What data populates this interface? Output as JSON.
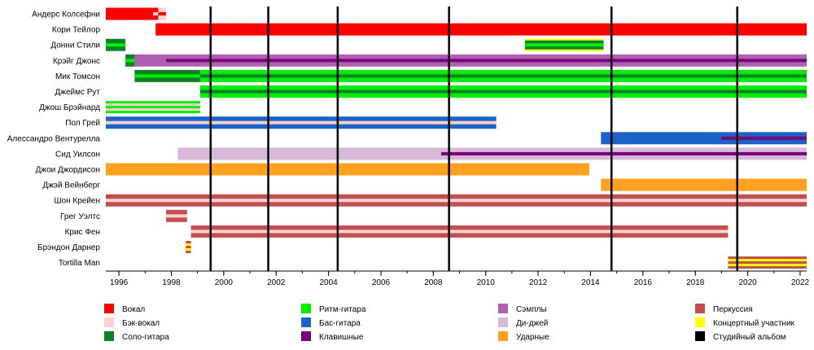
{
  "chart_data": {
    "type": "timeline",
    "x_range": [
      1995.5,
      2022.25
    ],
    "tick_labels": [
      "1996",
      "1998",
      "2000",
      "2002",
      "2004",
      "2006",
      "2008",
      "2010",
      "2012",
      "2014",
      "2016",
      "2018",
      "2020",
      "2022"
    ],
    "tick_values": [
      1996,
      1998,
      2000,
      2002,
      2004,
      2006,
      2008,
      2010,
      2012,
      2014,
      2016,
      2018,
      2020,
      2022
    ],
    "album_years": [
      1999.5,
      2001.7,
      2004.35,
      2008.6,
      2014.8,
      2019.6
    ],
    "roles": {
      "vocal": {
        "label": "Вокал",
        "color": "#ff0000"
      },
      "backing": {
        "label": "Бэк-вокал",
        "color": "#ffd0d0"
      },
      "lead": {
        "label": "Соло-гитара",
        "color": "#0f7f2a"
      },
      "rhythm": {
        "label": "Ритм-гитара",
        "color": "#00ee00"
      },
      "bass": {
        "label": "Бас-гитара",
        "color": "#1b63c6"
      },
      "keys": {
        "label": "Клавишные",
        "color": "#78007c"
      },
      "samples": {
        "label": "Сэмплы",
        "color": "#b060b0"
      },
      "dj": {
        "label": "Ди-джей",
        "color": "#d8b8d8"
      },
      "drums": {
        "label": "Ударные",
        "color": "#ffa020"
      },
      "perc": {
        "label": "Перкуссия",
        "color": "#c05050"
      },
      "touring": {
        "label": "Концертный участник",
        "color": "#ffff00"
      },
      "album": {
        "label": "Студийный альбом",
        "color": "#000000"
      }
    },
    "legend_columns": [
      [
        "vocal",
        "backing",
        "lead"
      ],
      [
        "rhythm",
        "bass",
        "keys"
      ],
      [
        "samples",
        "dj",
        "drums"
      ],
      [
        "perc",
        "touring",
        "album"
      ]
    ],
    "members": [
      {
        "name": "Андерс Колсефни",
        "bars": [
          {
            "role": "vocal",
            "start": 1995.5,
            "end": 1997.5,
            "pattern": "solid"
          },
          {
            "role": "vocal",
            "start": 1997.3,
            "end": 1997.5,
            "pattern": "stripe",
            "stripe": "backing"
          },
          {
            "role": "backing",
            "start": 1997.5,
            "end": 1997.8,
            "pattern": "stripe",
            "stripe": "vocal"
          }
        ]
      },
      {
        "name": "Кори Тейлор",
        "bars": [
          {
            "role": "vocal",
            "start": 1997.4,
            "end": 2022.25,
            "pattern": "solid"
          }
        ]
      },
      {
        "name": "Донни Стили",
        "bars": [
          {
            "role": "lead",
            "start": 1995.5,
            "end": 1996.25,
            "pattern": "stripe",
            "stripe": "rhythm"
          },
          {
            "role": "touring",
            "start": 2011.5,
            "end": 2014.5,
            "pattern": "solid"
          },
          {
            "role": "lead",
            "start": 2011.5,
            "end": 2014.5,
            "pattern": "stripe",
            "stripe": "rhythm",
            "thin": true
          }
        ]
      },
      {
        "name": "Крэйг Джонс",
        "bars": [
          {
            "role": "lead",
            "start": 1996.25,
            "end": 1996.6,
            "pattern": "stripe",
            "stripe": "rhythm"
          },
          {
            "role": "samples",
            "start": 1996.6,
            "end": 2022.25,
            "pattern": "solid"
          },
          {
            "role": "keys",
            "start": 1997.8,
            "end": 2022.25,
            "pattern": "thin"
          }
        ]
      },
      {
        "name": "Мик Томсон",
        "bars": [
          {
            "role": "lead",
            "start": 1996.6,
            "end": 1999.1,
            "pattern": "stripe",
            "stripe": "rhythm"
          },
          {
            "role": "rhythm",
            "start": 1999.1,
            "end": 2022.25,
            "pattern": "stripe",
            "stripe": "lead"
          }
        ]
      },
      {
        "name": "Джеймс Рут",
        "bars": [
          {
            "role": "rhythm",
            "start": 1999.1,
            "end": 2022.25,
            "pattern": "stripe",
            "stripe": "lead"
          }
        ]
      },
      {
        "name": "Джош Брэйнард",
        "bars": [
          {
            "role": "rhythm",
            "start": 1995.5,
            "end": 1999.1,
            "pattern": "stripe3",
            "stripe": "backing"
          }
        ]
      },
      {
        "name": "Пол Грей",
        "bars": [
          {
            "role": "bass",
            "start": 1995.5,
            "end": 2010.4,
            "pattern": "stripe",
            "stripe": "backing"
          }
        ]
      },
      {
        "name": "Алессандро Вентурелла",
        "bars": [
          {
            "role": "bass",
            "start": 2014.4,
            "end": 2022.25,
            "pattern": "solid"
          },
          {
            "role": "keys",
            "start": 2019.0,
            "end": 2022.25,
            "pattern": "thin"
          }
        ]
      },
      {
        "name": "Сид Уилсон",
        "bars": [
          {
            "role": "dj",
            "start": 1998.25,
            "end": 2022.25,
            "pattern": "solid"
          },
          {
            "role": "keys",
            "start": 2008.3,
            "end": 2022.25,
            "pattern": "thin"
          }
        ]
      },
      {
        "name": "Джои Джордисон",
        "bars": [
          {
            "role": "drums",
            "start": 1995.5,
            "end": 2013.95,
            "pattern": "solid"
          }
        ]
      },
      {
        "name": "Джэй Вейнберг",
        "bars": [
          {
            "role": "drums",
            "start": 2014.4,
            "end": 2022.25,
            "pattern": "solid"
          }
        ]
      },
      {
        "name": "Шон Крейен",
        "bars": [
          {
            "role": "perc",
            "start": 1995.5,
            "end": 2022.25,
            "pattern": "stripe",
            "stripe": "backing"
          }
        ]
      },
      {
        "name": "Грег Уэлтс",
        "bars": [
          {
            "role": "perc",
            "start": 1997.8,
            "end": 1998.6,
            "pattern": "stripe",
            "stripe": "backing"
          }
        ]
      },
      {
        "name": "Крис Фен",
        "bars": [
          {
            "role": "perc",
            "start": 1998.75,
            "end": 2019.25,
            "pattern": "stripe",
            "stripe": "backing"
          }
        ]
      },
      {
        "name": "Брэндон Дарнер",
        "bars": [
          {
            "role": "perc",
            "start": 1998.55,
            "end": 1998.75,
            "pattern": "stripe3",
            "stripe": "touring"
          }
        ]
      },
      {
        "name": "Tortilla Man",
        "bars": [
          {
            "role": "perc",
            "start": 2019.25,
            "end": 2022.25,
            "pattern": "stripe3",
            "stripe": "touring"
          }
        ]
      }
    ]
  }
}
